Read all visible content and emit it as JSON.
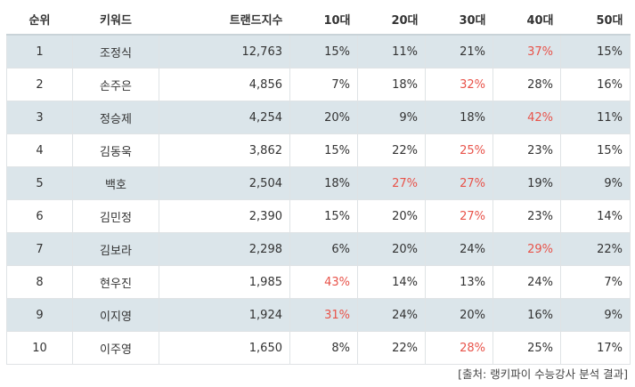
{
  "table": {
    "headers": [
      "순위",
      "키워드",
      "트랜드지수",
      "10대",
      "20대",
      "30대",
      "40대",
      "50대"
    ],
    "rows": [
      {
        "rank": "1",
        "keyword": "조정식",
        "index": "12,763",
        "a10": "15%",
        "a20": "11%",
        "a30": "21%",
        "a40": "37%",
        "a50": "15%",
        "highlight": [
          "a40"
        ]
      },
      {
        "rank": "2",
        "keyword": "손주은",
        "index": "4,856",
        "a10": "7%",
        "a20": "18%",
        "a30": "32%",
        "a40": "28%",
        "a50": "16%",
        "highlight": [
          "a30"
        ]
      },
      {
        "rank": "3",
        "keyword": "정승제",
        "index": "4,254",
        "a10": "20%",
        "a20": "9%",
        "a30": "18%",
        "a40": "42%",
        "a50": "11%",
        "highlight": [
          "a40"
        ]
      },
      {
        "rank": "4",
        "keyword": "김동욱",
        "index": "3,862",
        "a10": "15%",
        "a20": "22%",
        "a30": "25%",
        "a40": "23%",
        "a50": "15%",
        "highlight": [
          "a30"
        ]
      },
      {
        "rank": "5",
        "keyword": "백호",
        "index": "2,504",
        "a10": "18%",
        "a20": "27%",
        "a30": "27%",
        "a40": "19%",
        "a50": "9%",
        "highlight": [
          "a20",
          "a30"
        ]
      },
      {
        "rank": "6",
        "keyword": "김민정",
        "index": "2,390",
        "a10": "15%",
        "a20": "20%",
        "a30": "27%",
        "a40": "23%",
        "a50": "14%",
        "highlight": [
          "a30"
        ]
      },
      {
        "rank": "7",
        "keyword": "김보라",
        "index": "2,298",
        "a10": "6%",
        "a20": "20%",
        "a30": "24%",
        "a40": "29%",
        "a50": "22%",
        "highlight": [
          "a40"
        ]
      },
      {
        "rank": "8",
        "keyword": "현우진",
        "index": "1,985",
        "a10": "43%",
        "a20": "14%",
        "a30": "13%",
        "a40": "24%",
        "a50": "7%",
        "highlight": [
          "a10"
        ]
      },
      {
        "rank": "9",
        "keyword": "이지영",
        "index": "1,924",
        "a10": "31%",
        "a20": "24%",
        "a30": "20%",
        "a40": "16%",
        "a50": "9%",
        "highlight": [
          "a10"
        ]
      },
      {
        "rank": "10",
        "keyword": "이주영",
        "index": "1,650",
        "a10": "8%",
        "a20": "22%",
        "a30": "28%",
        "a40": "25%",
        "a50": "17%",
        "highlight": [
          "a30"
        ]
      }
    ]
  },
  "caption": "[출처: 랭키파이 수능강사 분석 결과]",
  "colors": {
    "highlight": "#e8534a",
    "stripe": "#dbe5ea",
    "border": "#dfe3e5"
  }
}
